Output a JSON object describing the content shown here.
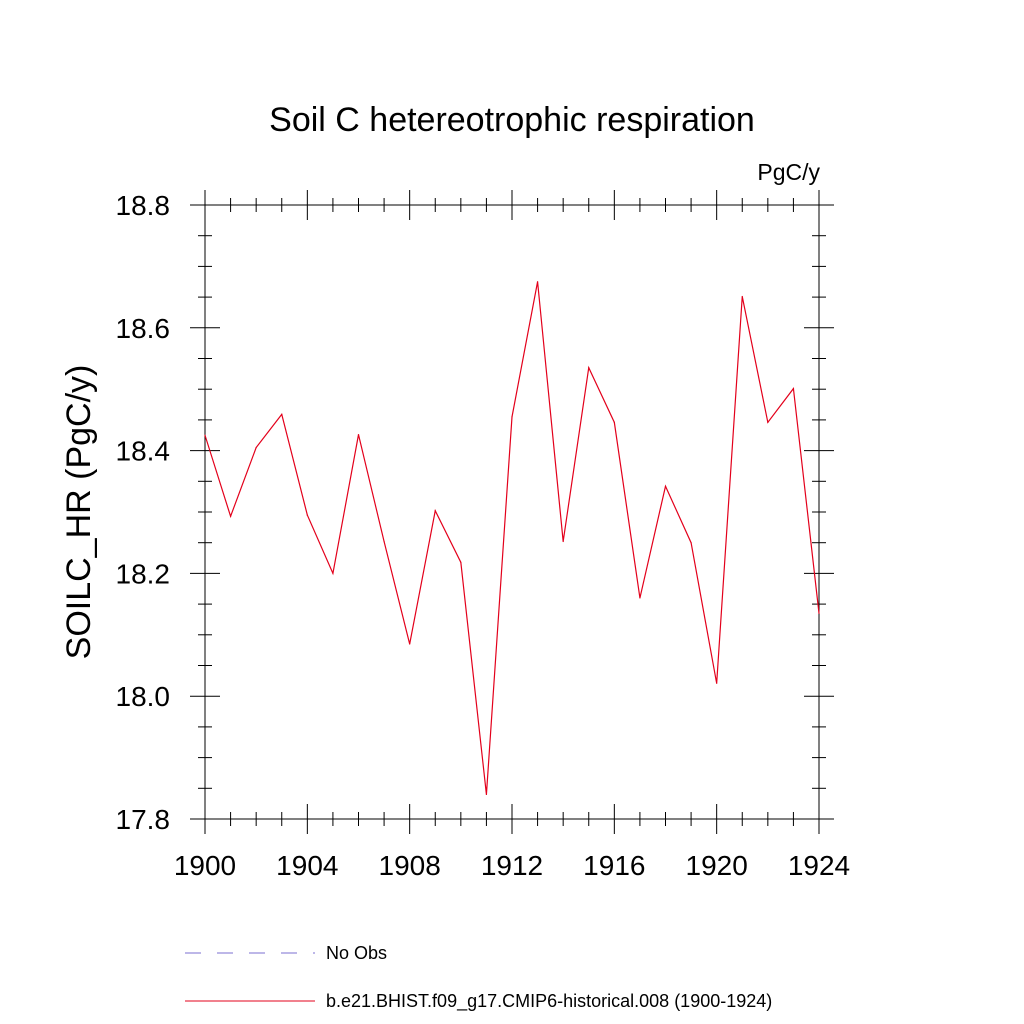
{
  "chart_data": {
    "type": "line",
    "title": "Soil C hetereotrophic respiration",
    "units_label": "PgC/y",
    "ylabel": "SOILC_HR  (PgC/y)",
    "xlabel": "",
    "xlim": [
      1900,
      1924
    ],
    "ylim": [
      17.8,
      18.8
    ],
    "x_ticks": [
      "1900",
      "1904",
      "1908",
      "1912",
      "1916",
      "1920",
      "1924"
    ],
    "y_ticks": [
      "17.8",
      "18.0",
      "18.2",
      "18.4",
      "18.6",
      "18.8"
    ],
    "grid": false,
    "legend_position": "bottom",
    "series": [
      {
        "name": "No Obs",
        "color": "#7b6fd0",
        "dash": "dashed",
        "x": [],
        "values": []
      },
      {
        "name": "b.e21.BHIST.f09_g17.CMIP6-historical.008 (1900-1924)",
        "color": "#e3001b",
        "dash": "solid",
        "x": [
          1900,
          1901,
          1902,
          1903,
          1904,
          1905,
          1906,
          1907,
          1908,
          1909,
          1910,
          1911,
          1912,
          1913,
          1914,
          1915,
          1916,
          1917,
          1918,
          1919,
          1920,
          1921,
          1922,
          1923,
          1924
        ],
        "values": [
          18.425,
          18.293,
          18.405,
          18.459,
          18.295,
          18.2,
          18.426,
          18.252,
          18.085,
          18.302,
          18.218,
          17.84,
          18.455,
          18.675,
          18.252,
          18.535,
          18.446,
          18.16,
          18.342,
          18.25,
          18.021,
          18.651,
          18.446,
          18.501,
          18.135
        ]
      }
    ]
  }
}
